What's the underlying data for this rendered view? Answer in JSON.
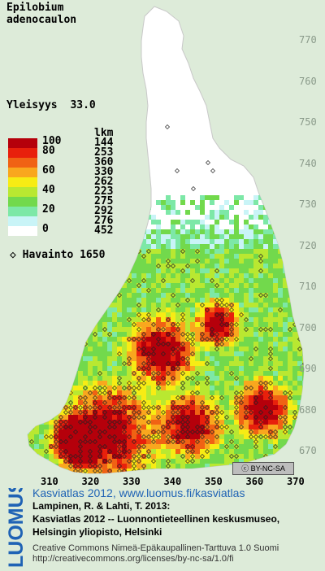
{
  "species": [
    "Epilobium",
    "adenocaulon"
  ],
  "frequency": {
    "label": "Yleisyys",
    "value": "33.0"
  },
  "legend": {
    "count_header": "lkm",
    "classes": [
      {
        "label": "100",
        "count": "144",
        "color": "#b5000b"
      },
      {
        "label": "80",
        "count": "253",
        "color": "#e8200c"
      },
      {
        "label": "",
        "count": "360",
        "color": "#f06214"
      },
      {
        "label": "60",
        "count": "330",
        "color": "#f9a71e"
      },
      {
        "label": "",
        "count": "262",
        "color": "#f7ec14"
      },
      {
        "label": "40",
        "count": "223",
        "color": "#b9e831"
      },
      {
        "label": "",
        "count": "275",
        "color": "#72d94c"
      },
      {
        "label": "20",
        "count": "292",
        "color": "#7de8a7"
      },
      {
        "label": "",
        "count": "276",
        "color": "#c9f4f7"
      },
      {
        "label": "0",
        "count": "452",
        "color": "#ffffff"
      }
    ]
  },
  "observation": {
    "symbol": "◇",
    "label": "Havainto",
    "count": "1650"
  },
  "y_ticks": [
    "770",
    "760",
    "750",
    "740",
    "730",
    "720",
    "710",
    "700",
    "690",
    "680",
    "670"
  ],
  "x_ticks": [
    "310",
    "320",
    "330",
    "340",
    "350",
    "360",
    "370"
  ],
  "logo": "LUOMUS",
  "license_badge": "BY-NC-SA",
  "footer": {
    "title": "Kasviatlas 2012, www.luomus.fi/kasviatlas",
    "citation_1": "Lampinen, R. & Lahti, T. 2013:",
    "citation_2": "Kasviatlas 2012 -- Luonnontieteellinen keskusmuseo,",
    "citation_3": "Helsingin yliopisto, Helsinki",
    "license_1": "Creative Commons Nimeä-Epäkaupallinen-Tarttuva 1.0 Suomi",
    "license_2": "http://creativecommons.org/licenses/by-nc-sa/1.0/fi"
  }
}
